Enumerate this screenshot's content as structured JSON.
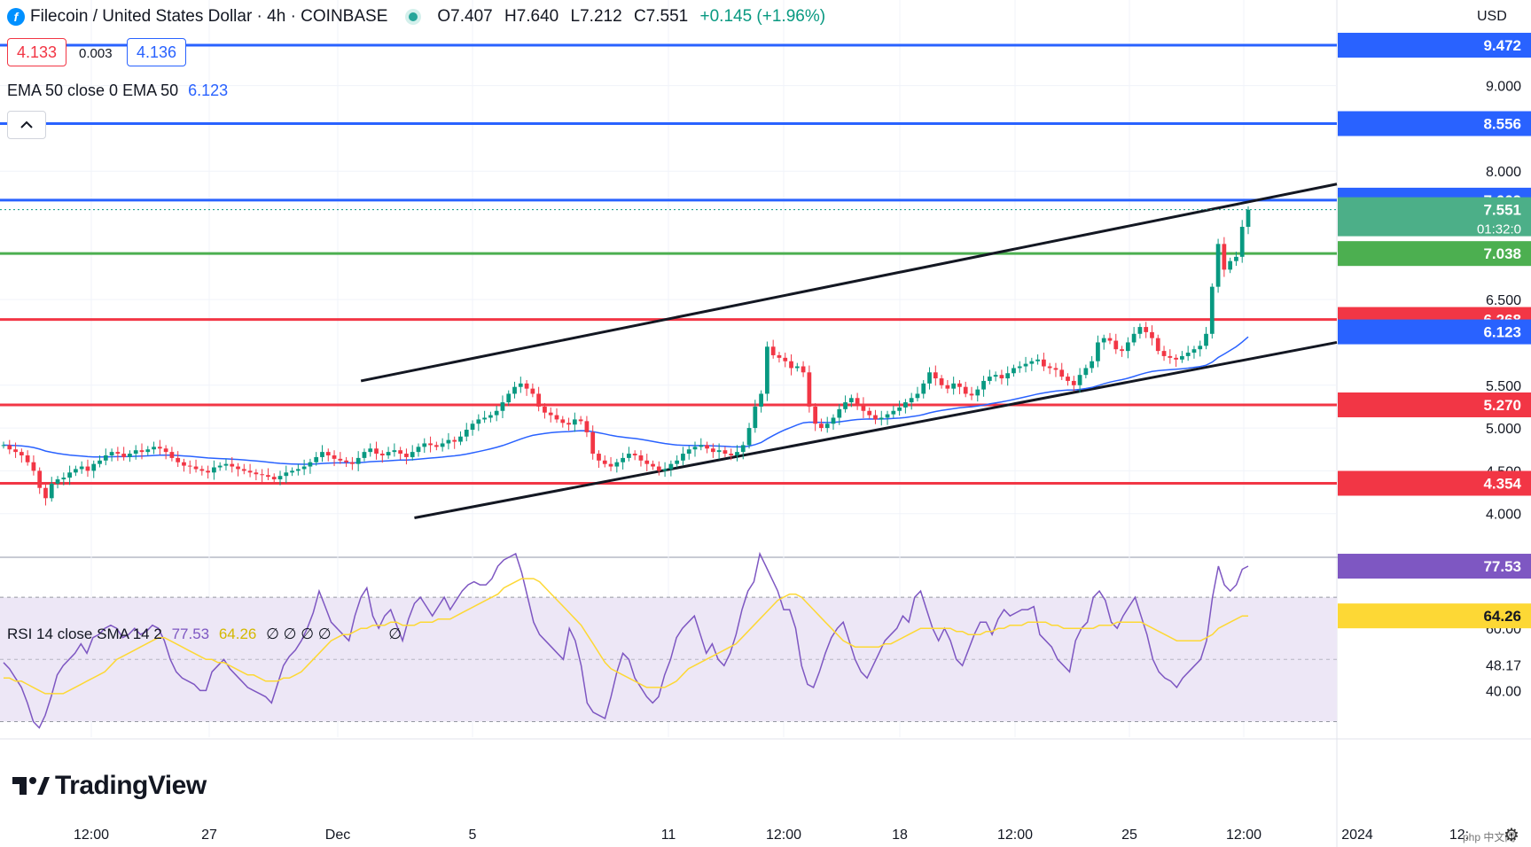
{
  "header": {
    "symbol": "Filecoin / United States Dollar · 4h · COINBASE",
    "open": "O7.407",
    "high": "H7.640",
    "low": "L7.212",
    "close": "C7.551",
    "change": "+0.145 (+1.96%)"
  },
  "quote": {
    "sell": "4.133",
    "spread": "0.003",
    "buy": "4.136"
  },
  "ema_legend": {
    "label": "EMA 50 close 0 EMA 50",
    "value": "6.123"
  },
  "rsi_legend": {
    "label": "RSI 14 close SMA 14 2",
    "rsi": "77.53",
    "sma": "64.26",
    "extra": "∅ ∅ ∅ ∅",
    "extra2": "∅"
  },
  "currency": "USD",
  "brand": "TradingView",
  "watermark": "php 中文网",
  "colors": {
    "up": "#089981",
    "down": "#f23645",
    "ema": "#2962ff",
    "blue_level": "#2962ff",
    "green_level": "#4caf50",
    "red_level": "#f23645",
    "rsi": "#7e57c2",
    "rsi_sma": "#fdd835",
    "rsi_band": "#ede7f6"
  },
  "chart_data": [
    {
      "type": "candlestick",
      "title": "Filecoin / United States Dollar · 4h · COINBASE",
      "ylim": [
        3.5,
        10.0
      ],
      "y_ticks": [
        4.0,
        4.5,
        5.0,
        5.5,
        6.5,
        8.0,
        9.0
      ],
      "y_tick_labels": [
        "4.000",
        "4.500",
        "5.000",
        "5.500",
        "6.500",
        "8.000",
        "9.000"
      ],
      "x_tick_labels": [
        "12:00",
        "27",
        "Dec",
        "5",
        "11",
        "12:00",
        "18",
        "12:00",
        "25",
        "12:00",
        "2024",
        "12:"
      ],
      "horizontal_levels": [
        {
          "value": 9.472,
          "label": "9.472",
          "color": "blue"
        },
        {
          "value": 8.556,
          "label": "8.556",
          "color": "blue"
        },
        {
          "value": 7.662,
          "label": "7.662",
          "color": "blue"
        },
        {
          "value": 7.038,
          "label": "7.038",
          "color": "green"
        },
        {
          "value": 6.268,
          "label": "6.268",
          "color": "red"
        },
        {
          "value": 5.27,
          "label": "5.270",
          "color": "red"
        },
        {
          "value": 4.354,
          "label": "4.354",
          "color": "red"
        }
      ],
      "last_price": {
        "value": 7.551,
        "label": "7.551",
        "countdown": "01:32:0"
      },
      "ema_last": {
        "value": 6.123,
        "label": "6.123"
      },
      "channel": {
        "upper": [
          [
            0.27,
            5.55
          ],
          [
            1.0,
            7.85
          ]
        ],
        "lower": [
          [
            0.31,
            3.95
          ],
          [
            1.0,
            6.0
          ]
        ]
      },
      "close": [
        4.8,
        4.75,
        4.72,
        4.68,
        4.6,
        4.5,
        4.3,
        4.18,
        4.35,
        4.4,
        4.42,
        4.48,
        4.52,
        4.55,
        4.5,
        4.58,
        4.62,
        4.68,
        4.72,
        4.7,
        4.66,
        4.7,
        4.74,
        4.72,
        4.75,
        4.78,
        4.76,
        4.72,
        4.65,
        4.6,
        4.56,
        4.55,
        4.52,
        4.5,
        4.48,
        4.54,
        4.56,
        4.58,
        4.55,
        4.52,
        4.5,
        4.48,
        4.46,
        4.45,
        4.43,
        4.4,
        4.44,
        4.48,
        4.5,
        4.52,
        4.55,
        4.6,
        4.66,
        4.72,
        4.68,
        4.64,
        4.62,
        4.6,
        4.58,
        4.65,
        4.72,
        4.76,
        4.7,
        4.68,
        4.72,
        4.74,
        4.7,
        4.66,
        4.72,
        4.78,
        4.82,
        4.8,
        4.78,
        4.82,
        4.86,
        4.84,
        4.9,
        4.98,
        5.05,
        5.1,
        5.12,
        5.15,
        5.2,
        5.3,
        5.4,
        5.48,
        5.52,
        5.46,
        5.4,
        5.25,
        5.18,
        5.15,
        5.1,
        5.06,
        5.04,
        5.1,
        5.08,
        4.95,
        4.7,
        4.62,
        4.58,
        4.55,
        4.6,
        4.65,
        4.7,
        4.68,
        4.62,
        4.58,
        4.55,
        4.5,
        4.52,
        4.58,
        4.62,
        4.7,
        4.75,
        4.78,
        4.8,
        4.76,
        4.72,
        4.74,
        4.7,
        4.68,
        4.72,
        4.8,
        5.0,
        5.25,
        5.4,
        5.95,
        5.85,
        5.82,
        5.78,
        5.7,
        5.72,
        5.65,
        5.25,
        5.05,
        5.0,
        5.05,
        5.12,
        5.22,
        5.3,
        5.35,
        5.28,
        5.2,
        5.15,
        5.1,
        5.12,
        5.16,
        5.2,
        5.24,
        5.3,
        5.35,
        5.4,
        5.52,
        5.65,
        5.58,
        5.5,
        5.46,
        5.52,
        5.48,
        5.4,
        5.38,
        5.45,
        5.55,
        5.6,
        5.62,
        5.58,
        5.64,
        5.7,
        5.72,
        5.75,
        5.78,
        5.8,
        5.72,
        5.7,
        5.68,
        5.6,
        5.55,
        5.5,
        5.62,
        5.7,
        5.78,
        6.0,
        6.05,
        6.02,
        5.92,
        5.9,
        6.0,
        6.1,
        6.18,
        6.12,
        6.05,
        5.9,
        5.84,
        5.82,
        5.8,
        5.84,
        5.88,
        5.92,
        5.96,
        6.1,
        6.65,
        7.15,
        6.85,
        6.95,
        7.0,
        7.35,
        7.55
      ]
    },
    {
      "type": "line",
      "title": "RSI 14 close SMA 14 2",
      "ylim": [
        25,
        82
      ],
      "y_ticks": [
        40.0,
        48.17,
        60.0
      ],
      "y_tick_labels": [
        "40.00",
        "48.17",
        "60.00"
      ],
      "band": [
        30,
        70
      ],
      "series": [
        {
          "name": "RSI",
          "last_label": "77.53",
          "values": [
            49,
            47,
            44,
            41,
            36,
            30,
            28,
            32,
            38,
            45,
            48,
            50,
            52,
            55,
            52,
            57,
            58,
            60,
            61,
            60,
            57,
            58,
            60,
            58,
            59,
            61,
            60,
            56,
            50,
            46,
            44,
            43,
            42,
            40,
            40,
            46,
            48,
            50,
            47,
            45,
            43,
            41,
            40,
            39,
            38,
            36,
            42,
            48,
            51,
            53,
            56,
            60,
            65,
            72,
            67,
            62,
            60,
            58,
            56,
            64,
            70,
            73,
            64,
            60,
            64,
            66,
            61,
            56,
            63,
            68,
            70,
            67,
            64,
            67,
            70,
            66,
            69,
            72,
            74,
            75,
            74,
            74,
            76,
            80,
            82,
            83,
            84,
            78,
            70,
            62,
            58,
            56,
            54,
            52,
            50,
            60,
            56,
            48,
            36,
            33,
            32,
            31,
            38,
            46,
            52,
            50,
            44,
            41,
            38,
            36,
            38,
            45,
            50,
            57,
            60,
            62,
            64,
            58,
            52,
            55,
            50,
            48,
            52,
            58,
            66,
            72,
            75,
            84,
            80,
            76,
            72,
            66,
            66,
            60,
            48,
            42,
            41,
            46,
            52,
            57,
            60,
            62,
            56,
            50,
            46,
            44,
            48,
            52,
            56,
            58,
            60,
            64,
            62,
            70,
            72,
            66,
            60,
            56,
            60,
            56,
            50,
            48,
            53,
            58,
            62,
            62,
            58,
            63,
            66,
            64,
            65,
            66,
            66,
            67,
            58,
            56,
            54,
            50,
            48,
            46,
            56,
            60,
            62,
            70,
            72,
            69,
            62,
            60,
            64,
            67,
            70,
            64,
            58,
            50,
            46,
            44,
            43,
            41,
            44,
            46,
            48,
            50,
            56,
            70,
            80,
            74,
            72,
            74,
            79,
            80
          ]
        },
        {
          "name": "SMA",
          "last_label": "64.26",
          "values": [
            44,
            44,
            43,
            43,
            42,
            41,
            40,
            39,
            39,
            39,
            39,
            40,
            41,
            42,
            43,
            44,
            45,
            46,
            48,
            50,
            51,
            52,
            53,
            54,
            55,
            56,
            57,
            57,
            56,
            55,
            54,
            53,
            52,
            51,
            50,
            50,
            49,
            49,
            48,
            47,
            46,
            45,
            45,
            44,
            43,
            43,
            43,
            44,
            44,
            45,
            46,
            48,
            50,
            52,
            54,
            56,
            57,
            58,
            58,
            59,
            60,
            60,
            61,
            61,
            61,
            62,
            62,
            61,
            61,
            61,
            62,
            62,
            62,
            63,
            63,
            63,
            64,
            65,
            66,
            67,
            68,
            69,
            70,
            71,
            73,
            74,
            75,
            76,
            76,
            76,
            75,
            73,
            71,
            69,
            67,
            65,
            63,
            61,
            58,
            55,
            52,
            49,
            47,
            46,
            45,
            44,
            43,
            42,
            41,
            41,
            41,
            41,
            42,
            43,
            45,
            47,
            48,
            49,
            50,
            51,
            52,
            53,
            54,
            55,
            57,
            59,
            61,
            63,
            65,
            67,
            69,
            70,
            71,
            71,
            70,
            68,
            66,
            64,
            62,
            60,
            58,
            56,
            55,
            54,
            54,
            54,
            54,
            54,
            55,
            55,
            56,
            57,
            58,
            59,
            60,
            60,
            60,
            60,
            60,
            60,
            59,
            59,
            58,
            58,
            58,
            59,
            59,
            60,
            60,
            61,
            61,
            61,
            62,
            62,
            62,
            62,
            61,
            61,
            60,
            60,
            60,
            60,
            60,
            60,
            61,
            61,
            61,
            62,
            62,
            62,
            62,
            62,
            61,
            60,
            59,
            58,
            57,
            56,
            56,
            56,
            56,
            56,
            57,
            58,
            60,
            61,
            62,
            63,
            64,
            64
          ]
        }
      ]
    }
  ]
}
